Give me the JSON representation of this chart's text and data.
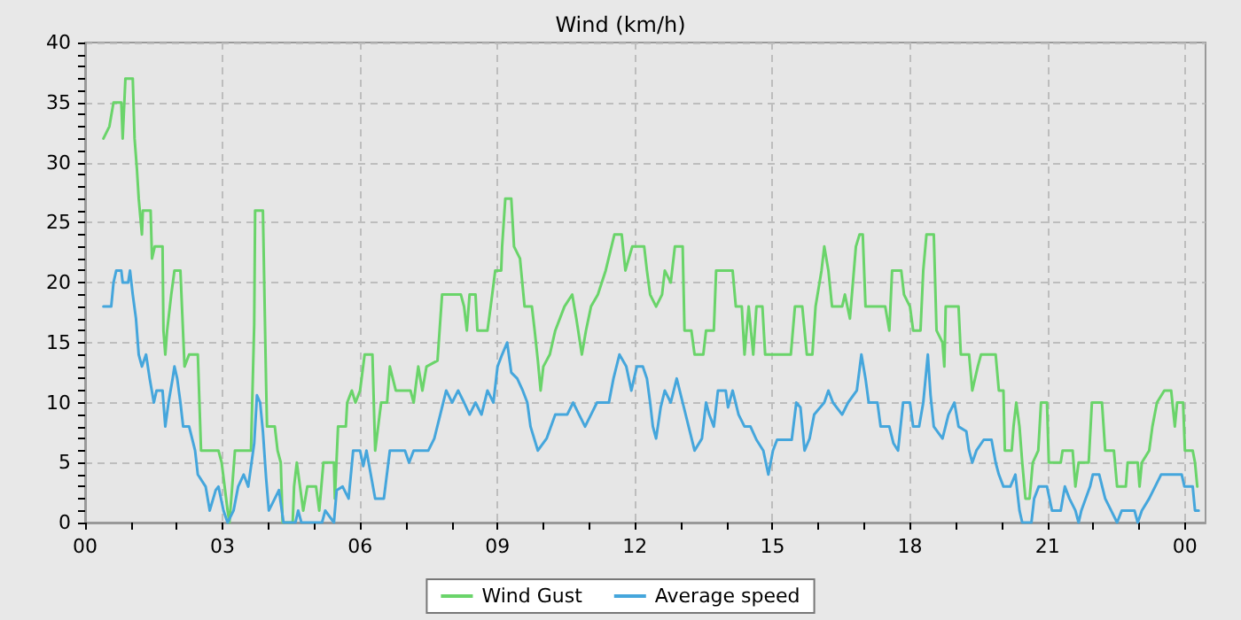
{
  "chart_data": {
    "type": "line",
    "title": "Wind (km/h)",
    "xlim": [
      0,
      24.45
    ],
    "ylim": [
      0,
      40
    ],
    "xticks": [
      {
        "value": 0,
        "label": "00"
      },
      {
        "value": 1,
        "label": null
      },
      {
        "value": 2,
        "label": null
      },
      {
        "value": 3,
        "label": "03"
      },
      {
        "value": 4,
        "label": null
      },
      {
        "value": 5,
        "label": null
      },
      {
        "value": 6,
        "label": "06"
      },
      {
        "value": 7,
        "label": null
      },
      {
        "value": 8,
        "label": null
      },
      {
        "value": 9,
        "label": "09"
      },
      {
        "value": 10,
        "label": null
      },
      {
        "value": 11,
        "label": null
      },
      {
        "value": 12,
        "label": "12"
      },
      {
        "value": 13,
        "label": null
      },
      {
        "value": 14,
        "label": null
      },
      {
        "value": 15,
        "label": "15"
      },
      {
        "value": 16,
        "label": null
      },
      {
        "value": 17,
        "label": null
      },
      {
        "value": 18,
        "label": "18"
      },
      {
        "value": 19,
        "label": null
      },
      {
        "value": 20,
        "label": null
      },
      {
        "value": 21,
        "label": "21"
      },
      {
        "value": 22,
        "label": null
      },
      {
        "value": 23,
        "label": null
      },
      {
        "value": 24,
        "label": "00"
      }
    ],
    "yticks": [
      0,
      {
        "value": 1,
        "label": null
      },
      {
        "value": 2,
        "label": null
      },
      {
        "value": 3,
        "label": null
      },
      {
        "value": 4,
        "label": null
      },
      5,
      {
        "value": 6,
        "label": null
      },
      {
        "value": 7,
        "label": null
      },
      {
        "value": 8,
        "label": null
      },
      {
        "value": 9,
        "label": null
      },
      10,
      {
        "value": 11,
        "label": null
      },
      {
        "value": 12,
        "label": null
      },
      {
        "value": 13,
        "label": null
      },
      {
        "value": 14,
        "label": null
      },
      15,
      {
        "value": 16,
        "label": null
      },
      {
        "value": 17,
        "label": null
      },
      {
        "value": 18,
        "label": null
      },
      {
        "value": 19,
        "label": null
      },
      20,
      {
        "value": 21,
        "label": null
      },
      {
        "value": 22,
        "label": null
      },
      {
        "value": 23,
        "label": null
      },
      {
        "value": 24,
        "label": null
      },
      25,
      {
        "value": 26,
        "label": null
      },
      {
        "value": 27,
        "label": null
      },
      {
        "value": 28,
        "label": null
      },
      {
        "value": 29,
        "label": null
      },
      30,
      {
        "value": 31,
        "label": null
      },
      {
        "value": 32,
        "label": null
      },
      {
        "value": 33,
        "label": null
      },
      {
        "value": 34,
        "label": null
      },
      35,
      {
        "value": 36,
        "label": null
      },
      {
        "value": 37,
        "label": null
      },
      {
        "value": 38,
        "label": null
      },
      {
        "value": 39,
        "label": null
      },
      40
    ],
    "grid": true,
    "legend": "bottom",
    "marker": "none",
    "line_style": "solid",
    "series": [
      {
        "name": "Wind Gust",
        "color": "#6ad46a",
        "x": [
          0.4,
          0.53,
          0.62,
          0.79,
          0.82,
          0.88,
          1.04,
          1.08,
          1.13,
          1.17,
          1.24,
          1.26,
          1.43,
          1.46,
          1.52,
          1.69,
          1.71,
          1.75,
          1.79,
          1.88,
          1.95,
          2.08,
          2.17,
          2.27,
          2.46,
          2.53,
          2.91,
          2.98,
          3.11,
          3.15,
          3.27,
          3.62,
          3.69,
          3.71,
          3.88,
          3.95,
          3.97,
          4.14,
          4.2,
          4.27,
          4.31,
          4.53,
          4.56,
          4.62,
          4.76,
          4.85,
          5.04,
          5.11,
          5.2,
          5.43,
          5.45,
          5.52,
          5.69,
          5.72,
          5.82,
          5.9,
          6.0,
          6.1,
          6.27,
          6.33,
          6.46,
          6.59,
          6.65,
          6.78,
          7.1,
          7.17,
          7.27,
          7.36,
          7.45,
          7.69,
          7.79,
          8.2,
          8.27,
          8.33,
          8.39,
          8.52,
          8.56,
          8.78,
          8.85,
          8.95,
          9.08,
          9.1,
          9.17,
          9.3,
          9.36,
          9.49,
          9.59,
          9.75,
          9.81,
          9.88,
          9.94,
          10.0,
          10.14,
          10.26,
          10.46,
          10.63,
          10.72,
          10.84,
          10.93,
          11.04,
          11.19,
          11.36,
          11.55,
          11.71,
          11.79,
          11.94,
          12.2,
          12.26,
          12.33,
          12.46,
          12.59,
          12.65,
          12.78,
          12.87,
          13.04,
          13.08,
          13.23,
          13.3,
          13.49,
          13.55,
          13.72,
          13.77,
          14.13,
          14.2,
          14.33,
          14.39,
          14.48,
          14.58,
          14.65,
          14.78,
          14.84,
          15.4,
          15.49,
          15.65,
          15.75,
          15.87,
          15.94,
          16.07,
          16.13,
          16.22,
          16.3,
          16.52,
          16.58,
          16.69,
          16.82,
          16.9,
          16.97,
          17.03,
          17.46,
          17.55,
          17.61,
          17.81,
          17.87,
          18.0,
          18.07,
          18.23,
          18.29,
          18.36,
          18.52,
          18.58,
          18.71,
          18.75,
          18.78,
          19.06,
          19.11,
          19.29,
          19.36,
          19.48,
          19.55,
          19.87,
          19.94,
          20.04,
          20.07,
          20.22,
          20.26,
          20.32,
          20.39,
          20.45,
          20.52,
          20.61,
          20.68,
          20.8,
          20.86,
          20.99,
          21.03,
          21.29,
          21.33,
          21.55,
          21.61,
          21.68,
          21.9,
          21.97,
          22.19,
          22.26,
          22.45,
          22.52,
          22.71,
          22.75,
          22.97,
          23.01,
          23.06,
          23.22,
          23.29,
          23.39,
          23.55,
          23.7,
          23.78,
          23.83,
          23.96,
          24.0,
          24.17,
          24.22,
          24.27
        ],
        "values": [
          32,
          33,
          35,
          35,
          32,
          37,
          37,
          32,
          29.5,
          27,
          24,
          26,
          26,
          22,
          23,
          23,
          16,
          14,
          16,
          19,
          21,
          21,
          13,
          14,
          14,
          6,
          6,
          5,
          1,
          0,
          6,
          6,
          16.5,
          26,
          26,
          11.5,
          8,
          8,
          6,
          5,
          0,
          0,
          3,
          5,
          1,
          3,
          3,
          1,
          5,
          5,
          2,
          8,
          8,
          10,
          11,
          10,
          11,
          14,
          14,
          6,
          10,
          10,
          13,
          11,
          11,
          10,
          13,
          11,
          13,
          13.5,
          19,
          19,
          18,
          16,
          19,
          19,
          16,
          16,
          18,
          21,
          21,
          23,
          27,
          27,
          23,
          22,
          18,
          18,
          16,
          13.5,
          11,
          13,
          14,
          16,
          18,
          19,
          17,
          14,
          16,
          18,
          19,
          21,
          24,
          24,
          21,
          23,
          23,
          21,
          19,
          18,
          19,
          21,
          20,
          23,
          23,
          16,
          16,
          14,
          14,
          16,
          16,
          21,
          21,
          18,
          18,
          14,
          18,
          14,
          18,
          18,
          14,
          14,
          18,
          18,
          14,
          14,
          18,
          21,
          23,
          21,
          18,
          18,
          19,
          17,
          23,
          24,
          24,
          18,
          18,
          16,
          21,
          21,
          19,
          18,
          16,
          16,
          21,
          24,
          24,
          16,
          15,
          13,
          18,
          18,
          14,
          14,
          11,
          13,
          14,
          14,
          11,
          11,
          6,
          6,
          8,
          10,
          8,
          5,
          2,
          2,
          5,
          6,
          10,
          10,
          5,
          5,
          6,
          6,
          3,
          5,
          5,
          10,
          10,
          6,
          6,
          3,
          3,
          5,
          5,
          3,
          5,
          6,
          8,
          10,
          11,
          11,
          8,
          10,
          10,
          6,
          6,
          5,
          3
        ]
      },
      {
        "name": "Average speed",
        "color": "#45a6dc",
        "x": [
          0.4,
          0.57,
          0.62,
          0.68,
          0.79,
          0.82,
          0.94,
          0.98,
          1.04,
          1.11,
          1.17,
          1.24,
          1.33,
          1.41,
          1.5,
          1.56,
          1.69,
          1.75,
          1.82,
          1.91,
          1.95,
          2.01,
          2.08,
          2.14,
          2.27,
          2.4,
          2.46,
          2.63,
          2.72,
          2.85,
          2.91,
          3.02,
          3.11,
          3.24,
          3.34,
          3.46,
          3.56,
          3.69,
          3.75,
          3.82,
          3.88,
          3.95,
          4.01,
          4.14,
          4.23,
          4.33,
          4.59,
          4.65,
          4.72,
          5.17,
          5.24,
          5.43,
          5.49,
          5.62,
          5.75,
          5.85,
          6.0,
          6.07,
          6.14,
          6.33,
          6.52,
          6.65,
          6.98,
          7.07,
          7.17,
          7.49,
          7.62,
          7.75,
          7.88,
          8.01,
          8.14,
          8.27,
          8.39,
          8.52,
          8.65,
          8.78,
          8.91,
          9.0,
          9.1,
          9.21,
          9.3,
          9.43,
          9.55,
          9.65,
          9.72,
          9.88,
          10.07,
          10.26,
          10.52,
          10.65,
          10.78,
          10.91,
          11.04,
          11.17,
          11.43,
          11.53,
          11.66,
          11.81,
          11.92,
          12.04,
          12.17,
          12.26,
          12.33,
          12.39,
          12.46,
          12.56,
          12.65,
          12.78,
          12.91,
          13.04,
          13.17,
          13.3,
          13.46,
          13.55,
          13.62,
          13.72,
          13.81,
          13.98,
          14.03,
          14.13,
          14.26,
          14.39,
          14.52,
          14.65,
          14.8,
          14.91,
          15.01,
          15.1,
          15.42,
          15.52,
          15.61,
          15.7,
          15.81,
          15.91,
          16.13,
          16.22,
          16.32,
          16.52,
          16.65,
          16.84,
          16.94,
          17.03,
          17.1,
          17.29,
          17.36,
          17.55,
          17.64,
          17.74,
          17.85,
          18.0,
          18.07,
          18.2,
          18.29,
          18.39,
          18.45,
          18.52,
          18.71,
          18.84,
          18.97,
          19.06,
          19.23,
          19.29,
          19.36,
          19.45,
          19.61,
          19.78,
          19.87,
          19.94,
          20.04,
          20.19,
          20.3,
          20.39,
          20.45,
          20.65,
          20.71,
          20.81,
          20.99,
          21.1,
          21.29,
          21.38,
          21.48,
          21.61,
          21.68,
          21.74,
          21.93,
          21.99,
          22.13,
          22.26,
          22.39,
          22.52,
          22.62,
          22.9,
          22.97,
          23.06,
          23.22,
          23.35,
          23.48,
          23.93,
          23.99,
          24.17,
          24.22,
          24.3
        ],
        "values": [
          18,
          18,
          20,
          21,
          21,
          20,
          20,
          21,
          19,
          17,
          14,
          13,
          14,
          12,
          10,
          11,
          11,
          8,
          10,
          12,
          13,
          12,
          10,
          8,
          8,
          6,
          4,
          3,
          1,
          2.7,
          3,
          1,
          0,
          1,
          3,
          4,
          3,
          6.6,
          10.6,
          10,
          7.6,
          3.7,
          1,
          2,
          2.7,
          0,
          0,
          1,
          0,
          0,
          1,
          0,
          2.7,
          3,
          2,
          6,
          6,
          4.7,
          6,
          2,
          2,
          6,
          6,
          5,
          6,
          6,
          7,
          9,
          11,
          10,
          11,
          10,
          9,
          10,
          9,
          11,
          10,
          13,
          14,
          15,
          12.5,
          12,
          11,
          10,
          8,
          6,
          7,
          9,
          9,
          10,
          9,
          8,
          9,
          10,
          10,
          12,
          14,
          13,
          11,
          13,
          13,
          12,
          10,
          8,
          7,
          9.6,
          11,
          10,
          12,
          10,
          8,
          6,
          7,
          10,
          9,
          8,
          11,
          11,
          9.6,
          11,
          9,
          8,
          8,
          6.9,
          6,
          4,
          6,
          6.9,
          6.9,
          10,
          9.6,
          6,
          7,
          9,
          10,
          11,
          10,
          9,
          10,
          11,
          14,
          12,
          10,
          10,
          8,
          8,
          6.6,
          6,
          10,
          10,
          8,
          8,
          10,
          14,
          10.6,
          8,
          7,
          9,
          10,
          8,
          7.6,
          6,
          5,
          6,
          6.9,
          6.9,
          5,
          4,
          3,
          3,
          4,
          1,
          0,
          0,
          2,
          3,
          3,
          1,
          1,
          3,
          2,
          1,
          0,
          1,
          3,
          4,
          4,
          2,
          1,
          0,
          1,
          1,
          0,
          1,
          2,
          3,
          4,
          4,
          3,
          3,
          1,
          1
        ]
      }
    ]
  }
}
